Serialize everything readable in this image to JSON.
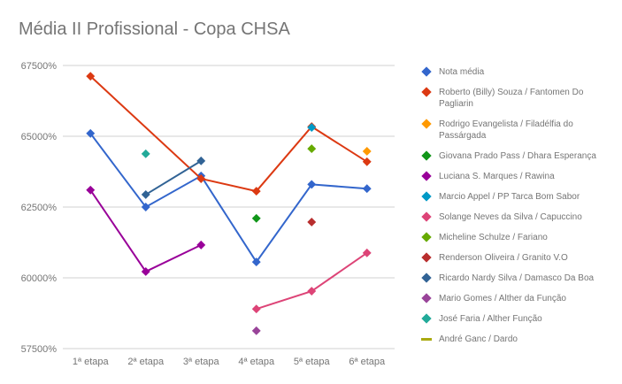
{
  "chart_data": {
    "type": "line",
    "title": "Média II Profissional - Copa CHSA",
    "categories": [
      "1ª etapa",
      "2ª etapa",
      "3ª etapa",
      "4ª etapa",
      "5ª etapa",
      "6ª etapa"
    ],
    "ylim": [
      57500,
      67500
    ],
    "yticks": [
      57500,
      60000,
      62500,
      65000,
      67500
    ],
    "ytick_labels": [
      "57500%",
      "60000%",
      "62500%",
      "65000%",
      "67500%"
    ],
    "grid": true,
    "legend_position": "right",
    "series": [
      {
        "name": "Nota média",
        "color": "#3366cc",
        "values": [
          65100,
          62500,
          63600,
          60560,
          63300,
          63150
        ]
      },
      {
        "name": "Roberto (Billy) Souza / Fantomen Do Pagliarin",
        "color": "#dc3912",
        "values": [
          67120,
          null,
          63500,
          63060,
          65340,
          64100
        ]
      },
      {
        "name": "Rodrigo Evangelista / Filadélfia do Passárgada",
        "color": "#ff9900",
        "values": [
          null,
          null,
          null,
          null,
          null,
          64470
        ]
      },
      {
        "name": "Giovana Prado Pass / Dhara Esperança",
        "color": "#109618",
        "values": [
          null,
          null,
          null,
          62100,
          null,
          null
        ]
      },
      {
        "name": "Luciana S. Marques / Rawina",
        "color": "#990099",
        "values": [
          63100,
          60220,
          61160,
          null,
          null,
          null
        ]
      },
      {
        "name": "Marcio Appel / PP Tarca Bom Sabor",
        "color": "#0099c6",
        "values": [
          null,
          null,
          null,
          null,
          65310,
          null
        ]
      },
      {
        "name": "Solange Neves da Silva / Capuccino",
        "color": "#dd4477",
        "values": [
          null,
          null,
          null,
          58900,
          59530,
          60880
        ]
      },
      {
        "name": "Micheline Schulze / Fariano",
        "color": "#66aa00",
        "values": [
          null,
          null,
          null,
          null,
          64560,
          null
        ]
      },
      {
        "name": "Renderson Oliveira / Granito V.O",
        "color": "#b82e2e",
        "values": [
          null,
          null,
          null,
          null,
          61970,
          null
        ]
      },
      {
        "name": "Ricardo Nardy Silva / Damasco Da Boa",
        "color": "#316395",
        "values": [
          null,
          62940,
          64130,
          null,
          null,
          null
        ]
      },
      {
        "name": "Mario Gomes / Alther da Função",
        "color": "#994499",
        "values": [
          null,
          null,
          null,
          58130,
          null,
          null
        ]
      },
      {
        "name": "José Faria / Alther Função",
        "color": "#22aa99",
        "values": [
          null,
          64380,
          null,
          null,
          null,
          null
        ]
      },
      {
        "name": "André Ganc / Dardo",
        "color": "#aaaa11",
        "values": [
          null,
          null,
          null,
          null,
          null,
          null
        ]
      }
    ]
  }
}
